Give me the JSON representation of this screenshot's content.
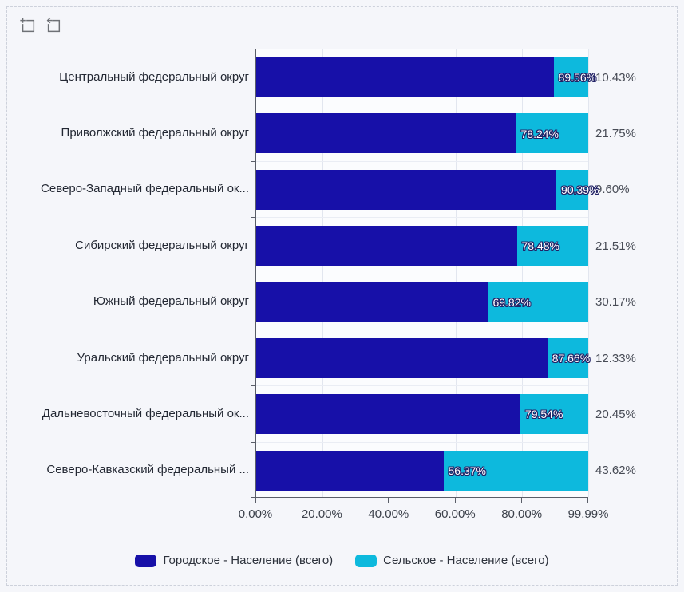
{
  "colors": {
    "urban": "#1710a8",
    "rural": "#0db9dd",
    "page_bg": "#f5f6fa",
    "plot_bg": "#fbfcfe",
    "grid_line": "#e2e6ef",
    "row_line": "#eaedf4",
    "axis_line": "#5a5e68",
    "label_inside_text": "#ffffff",
    "label_outside_text": "#474b55"
  },
  "toolbox": {
    "icons": [
      {
        "name": "box-zoom-icon"
      },
      {
        "name": "restore-icon"
      }
    ]
  },
  "chart_data": {
    "type": "bar",
    "orientation": "horizontal",
    "stacked": true,
    "grid": true,
    "legend_position": "bottom",
    "categories": [
      "Центральный федеральный округ",
      "Приволжский федеральный округ",
      "Северо-Западный федеральный ок...",
      "Сибирский федеральный округ",
      "Южный федеральный округ",
      "Уральский федеральный округ",
      "Дальневосточный федеральный ок...",
      "Северо-Кавказский федеральный ..."
    ],
    "series": [
      {
        "name": "Городское - Население (всего)",
        "color": "#1710a8",
        "values": [
          89.56,
          78.24,
          90.39,
          78.48,
          69.82,
          87.66,
          79.54,
          56.37
        ],
        "labels": [
          "89.56%",
          "78.24%",
          "90.39%",
          "78.48%",
          "69.82%",
          "87.66%",
          "79.54%",
          "56.37%"
        ]
      },
      {
        "name": "Сельское - Население (всего)",
        "color": "#0db9dd",
        "values": [
          10.43,
          21.75,
          9.6,
          21.51,
          30.17,
          12.33,
          20.45,
          43.62
        ],
        "labels": [
          "10.43%",
          "21.75%",
          "9.60%",
          "21.51%",
          "30.17%",
          "12.33%",
          "20.45%",
          "43.62%"
        ]
      }
    ],
    "x_ticks": {
      "values": [
        0,
        20,
        40,
        60,
        80,
        99.99
      ],
      "labels": [
        "0.00%",
        "20.00%",
        "40.00%",
        "60.00%",
        "80.00%",
        "99.99%"
      ]
    },
    "xlim": [
      0,
      99.99
    ]
  }
}
